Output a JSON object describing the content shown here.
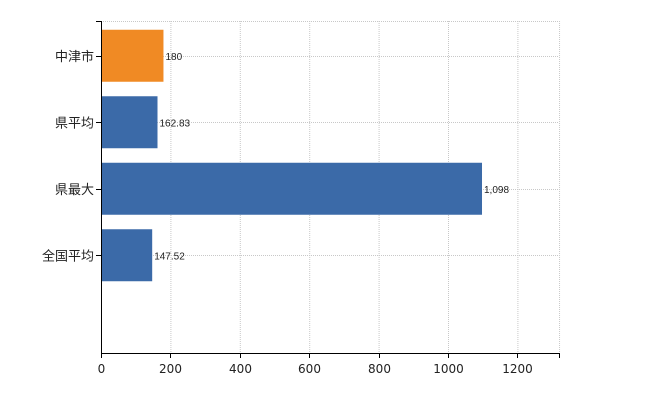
{
  "chart_data": {
    "type": "bar",
    "orientation": "horizontal",
    "categories": [
      "中津市",
      "県平均",
      "県最大",
      "全国平均"
    ],
    "values": [
      180,
      162.83,
      1098,
      147.52
    ],
    "value_labels": [
      "180",
      "162.83",
      "1,098",
      "147.52"
    ],
    "bar_colors": [
      "#f08a24",
      "#3b6aa8",
      "#3b6aa8",
      "#3b6aa8"
    ],
    "xlim": [
      0,
      1320
    ],
    "x_ticks": [
      0,
      200,
      400,
      600,
      800,
      1000,
      1200
    ],
    "grid": true,
    "title": "",
    "xlabel": "",
    "ylabel": ""
  }
}
